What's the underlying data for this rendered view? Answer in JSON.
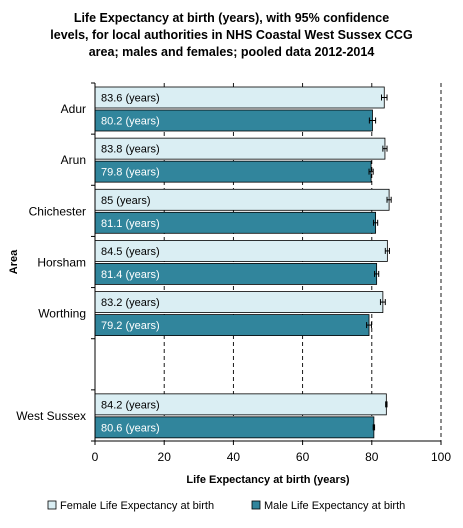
{
  "chart_data": {
    "type": "bar",
    "orientation": "horizontal",
    "title": "Life Expectancy at birth (years), with 95% confidence levels, for local authorities in NHS Coastal West Sussex CCG area; males and females; pooled data 2012-2014",
    "xlabel": "Life Expectancy at birth (years)",
    "ylabel": "Area",
    "xlim": [
      0,
      100
    ],
    "xticks": [
      0,
      20,
      40,
      60,
      80,
      100
    ],
    "grid": "vertical dashed",
    "legend_position": "bottom",
    "categories": [
      "Adur",
      "Arun",
      "Chichester",
      "Horsham",
      "Worthing",
      "",
      "West Sussex"
    ],
    "series": [
      {
        "name": "Female Life Expectancy at birth",
        "color": "#DAEEF3",
        "values": [
          83.6,
          83.8,
          85,
          84.5,
          83.2,
          null,
          84.2
        ],
        "labels": [
          "83.6 (years)",
          "83.8 (years)",
          "85 (years)",
          "84.5 (years)",
          "83.2 (years)",
          "",
          "84.2 (years)"
        ],
        "ci_low": [
          82.8,
          83.2,
          84.4,
          83.9,
          82.5,
          null,
          84.0
        ],
        "ci_high": [
          84.4,
          84.4,
          85.6,
          85.1,
          83.9,
          null,
          84.4
        ]
      },
      {
        "name": "Male Life Expectancy at birth",
        "color": "#31859C",
        "values": [
          80.2,
          79.8,
          81.1,
          81.4,
          79.2,
          null,
          80.6
        ],
        "labels": [
          "80.2 (years)",
          "79.8 (years)",
          "81.1 (years)",
          "81.4 (years)",
          "79.2 (years)",
          "",
          "80.6 (years)"
        ],
        "ci_low": [
          79.3,
          79.2,
          80.5,
          80.8,
          78.5,
          null,
          80.4
        ],
        "ci_high": [
          81.1,
          80.4,
          81.7,
          82.0,
          79.9,
          null,
          80.8
        ]
      }
    ]
  }
}
